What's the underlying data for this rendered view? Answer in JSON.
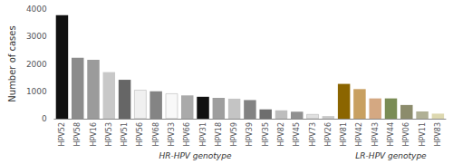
{
  "chart_data": {
    "type": "bar",
    "categories": [
      "HPV52",
      "HPV58",
      "HPV16",
      "HPV53",
      "HPV51",
      "HPV56",
      "HPV68",
      "HPV33",
      "HPV66",
      "HPV31",
      "HPV18",
      "HPV59",
      "HPV39",
      "HPV35",
      "HPV82",
      "HPV45",
      "HPV73",
      "HPV26",
      "HPV81",
      "HPV42",
      "HPV43",
      "HPV44",
      "HPV06",
      "HPV11",
      "HPV83"
    ],
    "values": [
      3780,
      2220,
      2150,
      1700,
      1420,
      1050,
      1000,
      920,
      850,
      800,
      760,
      730,
      680,
      340,
      305,
      255,
      165,
      95,
      1270,
      1080,
      740,
      740,
      500,
      265,
      185
    ],
    "colors": [
      "#111111",
      "#8c8c8c",
      "#9b9b9b",
      "#c8c8c8",
      "#666666",
      "#f0f0f0",
      "#848484",
      "#f8f8f8",
      "#aaaaaa",
      "#111111",
      "#9e9e9e",
      "#c4c4c4",
      "#838383",
      "#6e6e6e",
      "#bdbdbd",
      "#909090",
      "#e0e0e0",
      "#c8c8c8",
      "#8B6500",
      "#c8a060",
      "#d4a882",
      "#7a8c55",
      "#8c8c6c",
      "#b0b095",
      "#ddd8b0"
    ],
    "ylabel": "Number of cases",
    "ylim": [
      0,
      4000
    ],
    "yticks": [
      0,
      1000,
      2000,
      3000,
      4000
    ],
    "grid": false,
    "annotations": [
      {
        "text": "HR-HPV genotype",
        "from": "HPV52",
        "to": "HPV26"
      },
      {
        "text": "LR-HPV genotype",
        "from": "HPV81",
        "to": "HPV83"
      }
    ]
  }
}
